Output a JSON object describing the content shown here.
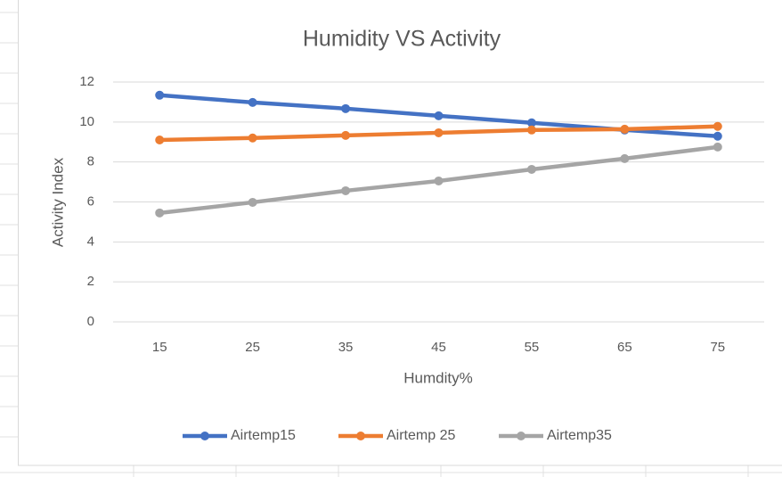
{
  "chart_data": {
    "type": "line",
    "title": "Humidity VS Activity",
    "x_label": "Humdity%",
    "y_label": "Activity Index",
    "categories": [
      15,
      25,
      35,
      45,
      55,
      65,
      75
    ],
    "series": [
      {
        "name": "Airtemp15",
        "color": "#4472c4",
        "values": [
          11.34,
          10.98,
          10.67,
          10.31,
          9.96,
          9.6,
          9.29
        ]
      },
      {
        "name": "Airtemp 25",
        "color": "#ed7d31",
        "values": [
          9.1,
          9.2,
          9.33,
          9.46,
          9.6,
          9.64,
          9.78
        ]
      },
      {
        "name": "Airtemp35",
        "color": "#a5a5a5",
        "values": [
          5.45,
          5.98,
          6.56,
          7.05,
          7.63,
          8.17,
          8.75
        ]
      }
    ],
    "ylim": [
      0,
      12
    ],
    "yticks": [
      0,
      2,
      4,
      6,
      8,
      10,
      12
    ],
    "grid": true,
    "legend": "bottom"
  }
}
